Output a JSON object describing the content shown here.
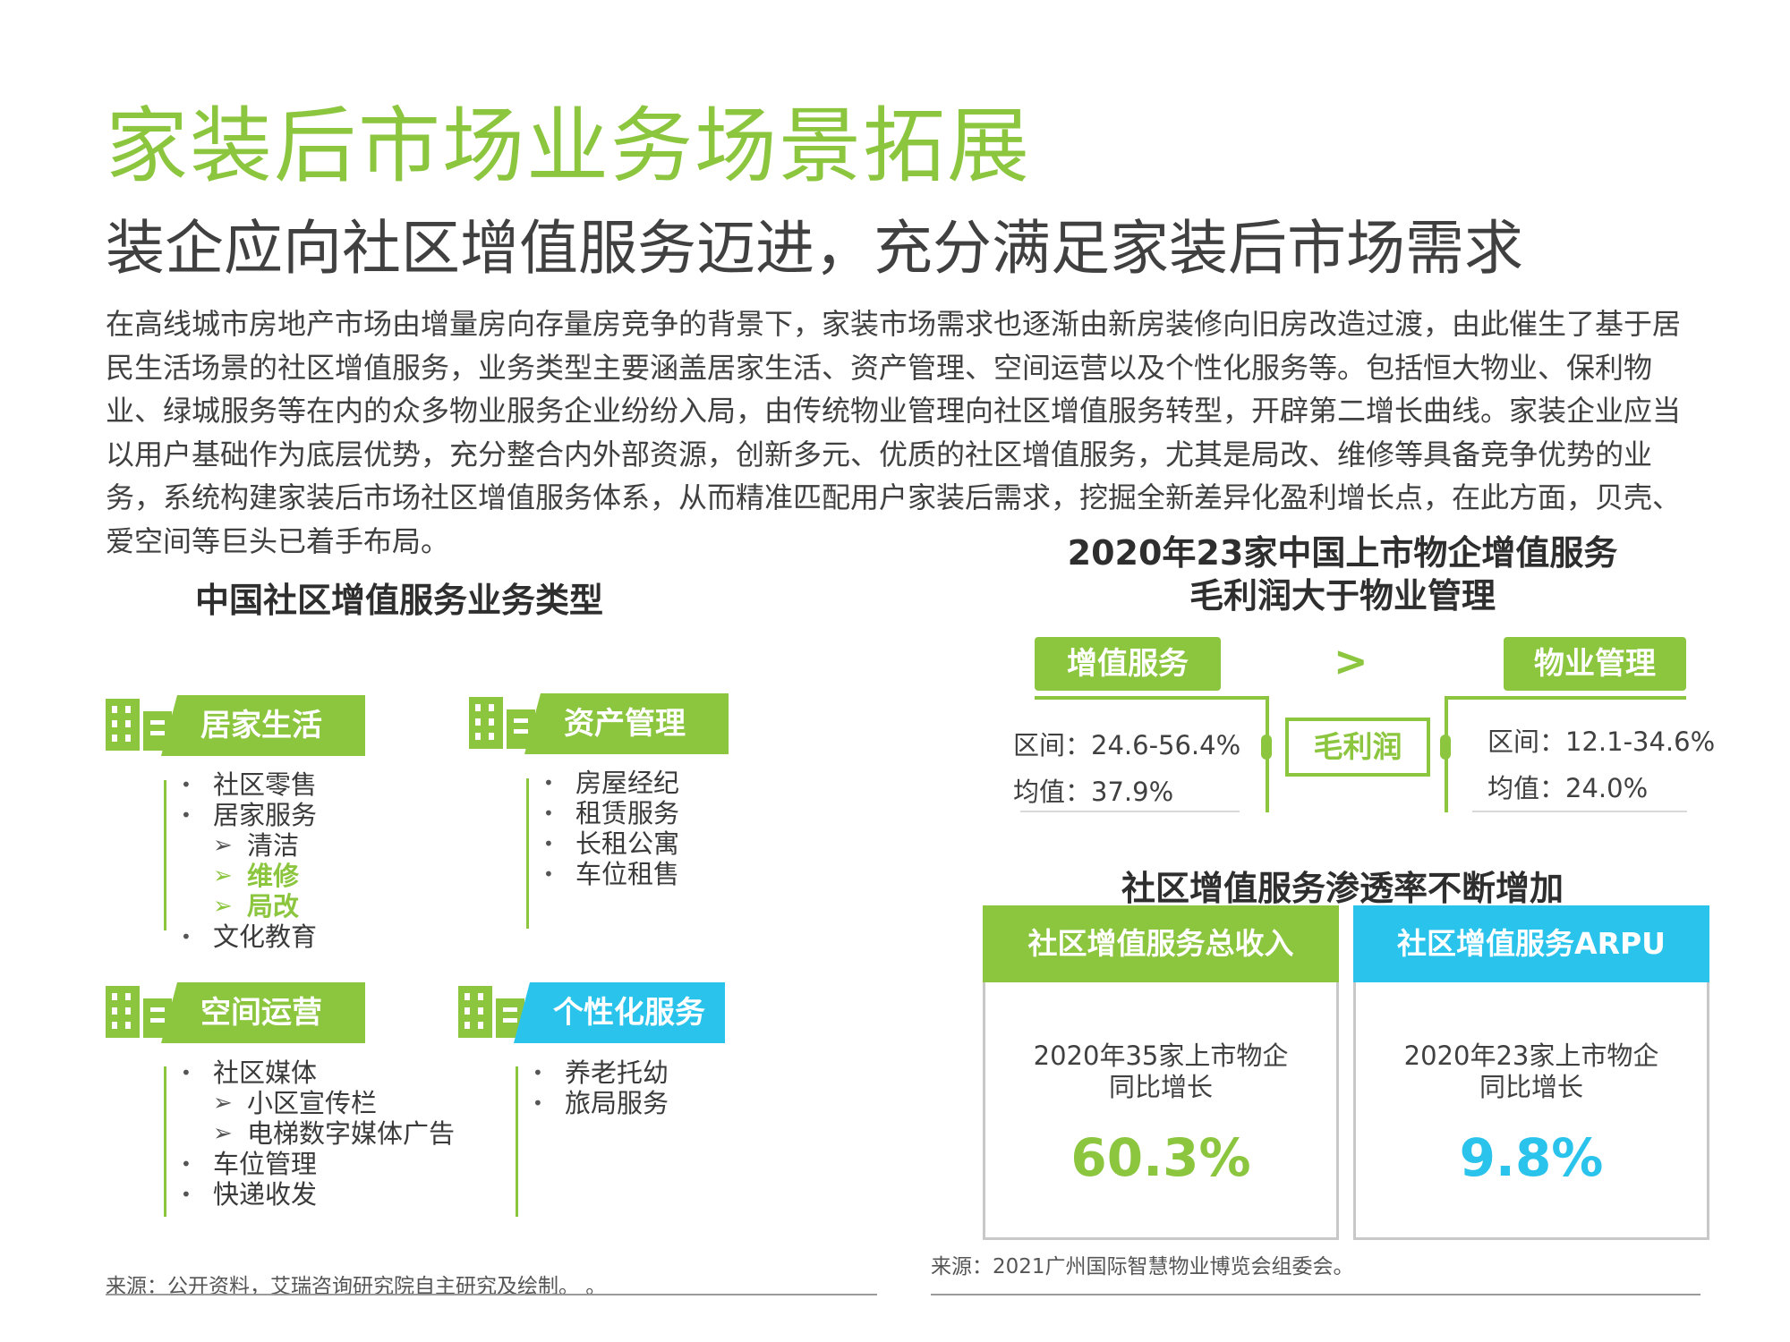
{
  "header": {
    "title": "家装后市场业务场景拓展",
    "subtitle": "装企应向社区增值服务迈进，充分满足家装后市场需求"
  },
  "intro": "在高线城市房地产市场由增量房向存量房竞争的背景下，家装市场需求也逐渐由新房装修向旧房改造过渡，由此催生了基于居民生活场景的社区增值服务，业务类型主要涵盖居家生活、资产管理、空间运营以及个性化服务等。包括恒大物业、保利物业、绿城服务等在内的众多物业服务企业纷纷入局，由传统物业管理向社区增值服务转型，开辟第二增长曲线。家装企业应当以用户基础作为底层优势，充分整合内外部资源，创新多元、优质的社区增值服务，尤其是局改、维修等具备竞争优势的业务，系统构建家装后市场社区增值服务体系，从而精准匹配用户家装后需求，挖掘全新差异化盈利增长点，在此方面，贝壳、爱空间等巨头已着手布局。",
  "left": {
    "title": "中国社区增值服务业务类型",
    "categories": [
      {
        "label": "居家生活",
        "items": [
          "社区零售",
          "居家服务",
          "清洁",
          "维修",
          "局改",
          "文化教育"
        ]
      },
      {
        "label": "资产管理",
        "items": [
          "房屋经纪",
          "租赁服务",
          "长租公寓",
          "车位租售"
        ]
      },
      {
        "label": "空间运营",
        "items": [
          "社区媒体",
          "小区宣传栏",
          "电梯数字媒体广告",
          "车位管理",
          "快递收发"
        ]
      },
      {
        "label": "个性化服务",
        "items": [
          "养老托幼",
          "旅局服务"
        ]
      }
    ],
    "source": "来源：公开资料，艾瑞咨询研究院自主研究及绘制。 。"
  },
  "right_top": {
    "title_line1": "2020年23家中国上市物企增值服务",
    "title_line2": "毛利润大于物业管理",
    "left_pill": "增值服务",
    "right_pill": "物业管理",
    "greater_sign": ">",
    "middle_label": "毛利润",
    "left_range": "区间：24.6-56.4%",
    "left_mean": "均值：37.9%",
    "right_range": "区间：12.1-34.6%",
    "right_mean": "均值：24.0%"
  },
  "right_bottom": {
    "title": "社区增值服务渗透率不断增加",
    "cards": [
      {
        "header": "社区增值服务总收入",
        "desc_line1": "2020年35家上市物企",
        "desc_line2": "同比增长",
        "value": "60.3%",
        "color": "#8cc63f"
      },
      {
        "header": "社区增值服务ARPU",
        "desc_line1": "2020年23家上市物企",
        "desc_line2": "同比增长",
        "value": "9.8%",
        "color": "#29c3ec"
      }
    ],
    "source": "来源：2021广州国际智慧物业博览会组委会。"
  },
  "colors": {
    "brand_green": "#8cc63f",
    "brand_blue": "#29c3ec"
  }
}
